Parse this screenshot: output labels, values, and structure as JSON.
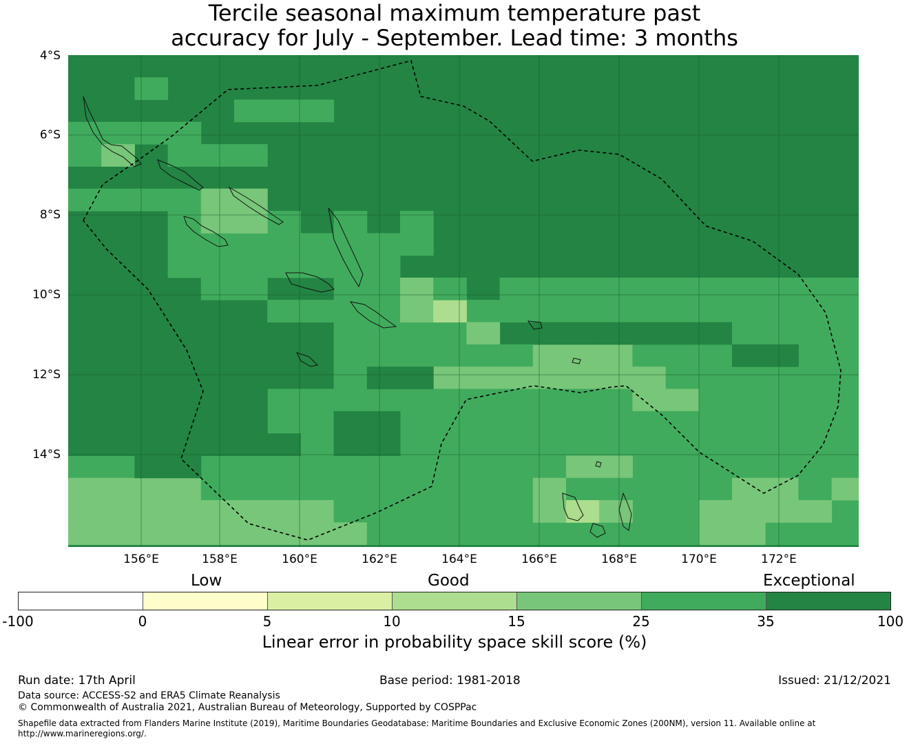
{
  "title": {
    "line1": "Tercile seasonal maximum temperature past",
    "line2": "accuracy for July - September. Lead time: 3 months"
  },
  "map": {
    "lat_labels": [
      "4°S",
      "6°S",
      "8°S",
      "10°S",
      "12°S",
      "14°S"
    ],
    "lon_labels": [
      "156°E",
      "158°E",
      "160°E",
      "162°E",
      "164°E",
      "166°E",
      "168°E",
      "170°E",
      "172°E"
    ],
    "colors": {
      "dark": "#238443",
      "mid": "#41ab5d",
      "light": "#78c679",
      "pale": "#addd8e"
    },
    "boundary_style": "dashed black line (maritime boundary / EEZ)"
  },
  "colorbar": {
    "categories": [
      "Low",
      "Good",
      "Exceptional"
    ],
    "ticks": [
      "-100",
      "0",
      "5",
      "10",
      "15",
      "25",
      "35",
      "100"
    ],
    "colors": [
      "#ffffff",
      "#ffffcc",
      "#d9f0a3",
      "#addd8e",
      "#78c679",
      "#41ab5d",
      "#238443"
    ],
    "title": "Linear error in probability space skill score (%)"
  },
  "footer": {
    "run_date": "Run date: 17th April",
    "base_period": "Base period: 1981-2018",
    "issued": "Issued: 21/12/2021",
    "data_source": "Data source: ACCESS-S2 and ERA5 Climate Reanalysis",
    "copyright": "© Commonwealth of Australia 2021, Australian Bureau of Meteorology, Supported by COSPPac",
    "shapefile_line1": "Shapefile data extracted from Flanders Marine Institute (2019), Maritime Boundaries Geodatabase: Maritime Boundaries and Exclusive Economic Zones (200NM), version 11. Available online at",
    "shapefile_line2": "http://www.marineregions.org/."
  }
}
